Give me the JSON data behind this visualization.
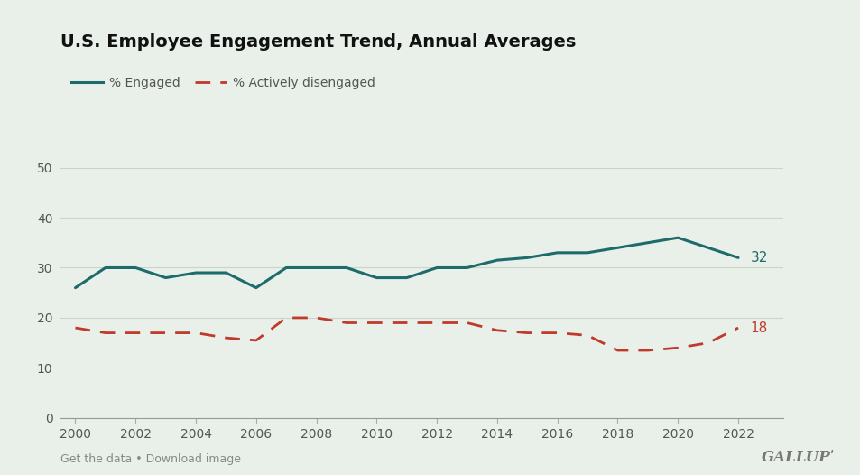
{
  "title": "U.S. Employee Engagement Trend, Annual Averages",
  "background_color": "#e8f0e9",
  "engaged_color": "#1d6b6b",
  "disengaged_color": "#c0392b",
  "years": [
    2000,
    2001,
    2002,
    2003,
    2004,
    2005,
    2006,
    2007,
    2008,
    2009,
    2010,
    2011,
    2012,
    2013,
    2014,
    2015,
    2016,
    2017,
    2018,
    2019,
    2020,
    2021,
    2022
  ],
  "engaged": [
    26,
    30,
    30,
    28,
    29,
    29,
    26,
    30,
    30,
    30,
    28,
    28,
    30,
    30,
    31.5,
    32,
    33,
    33,
    34,
    35,
    36,
    34,
    32
  ],
  "disengaged": [
    18,
    17,
    17,
    17,
    17,
    16,
    15.5,
    20,
    20,
    19,
    19,
    19,
    19,
    19,
    17.5,
    17,
    17,
    16.5,
    13.5,
    13.5,
    14,
    15,
    18
  ],
  "xlim": [
    1999.5,
    2023.5
  ],
  "ylim": [
    0,
    55
  ],
  "yticks": [
    0,
    10,
    20,
    30,
    40,
    50
  ],
  "xticks": [
    2000,
    2002,
    2004,
    2006,
    2008,
    2010,
    2012,
    2014,
    2016,
    2018,
    2020,
    2022
  ],
  "legend_engaged": "% Engaged",
  "legend_disengaged": "% Actively disengaged",
  "footer_left": "Get the data • Download image",
  "footer_right": "GALLUPˈ",
  "grid_color": "#c8d5c8",
  "annotation_engaged": "32",
  "annotation_disengaged": "18"
}
